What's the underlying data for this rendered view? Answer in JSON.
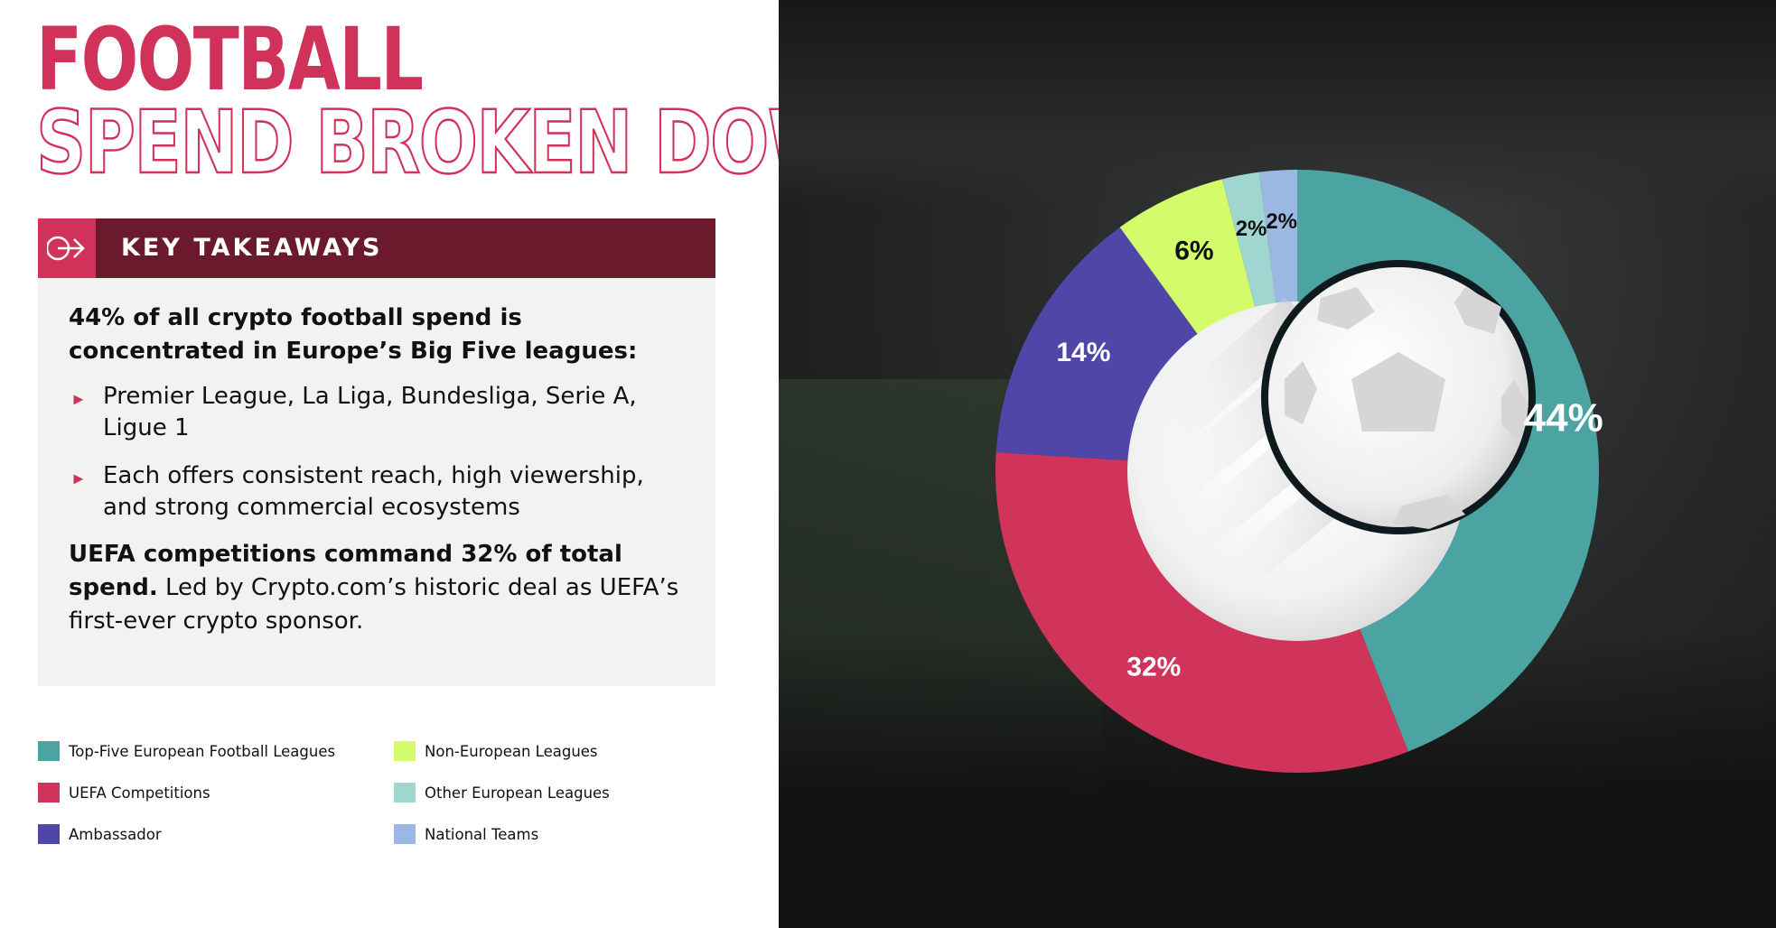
{
  "header": {
    "title_line1": "FOOTBALL",
    "title_line2": "SPEND BROKEN DOWN"
  },
  "key_takeaways": {
    "label": "KEY TAKEAWAYS",
    "intro": "44% of all crypto football spend is concentrated in Europe’s Big Five leagues:",
    "bullets": [
      "Premier League, La Liga, Bundesliga, Serie A, Ligue 1",
      "Each offers consistent reach, high viewership, and strong commercial ecosystems"
    ],
    "closing_bold": "UEFA competitions command 32% of total spend.",
    "closing_rest": " Led by Crypto.com’s historic deal as UEFA’s first-ever crypto sponsor."
  },
  "colors": {
    "accent": "#d1325a",
    "dark_band": "#6b1a2e"
  },
  "chart_data": {
    "type": "pie",
    "donut": true,
    "categories": [
      "Top-Five European Football Leagues",
      "UEFA Competitions",
      "Ambassador",
      "Non-European Leagues",
      "Other European Leagues",
      "National Teams"
    ],
    "values": [
      44,
      32,
      14,
      6,
      2,
      2
    ],
    "labels": [
      "44%",
      "32%",
      "14%",
      "6%",
      "2%",
      "2%"
    ],
    "colors": [
      "#4ba3a2",
      "#d1345a",
      "#5046a8",
      "#d4fb6b",
      "#9fd6d0",
      "#9bb8e4"
    ],
    "label_colors": [
      "#ffffff",
      "#ffffff",
      "#ffffff",
      "#111111",
      "#111111",
      "#111111"
    ],
    "legend_placement": "bottom-left",
    "start": "top, clockwise"
  }
}
